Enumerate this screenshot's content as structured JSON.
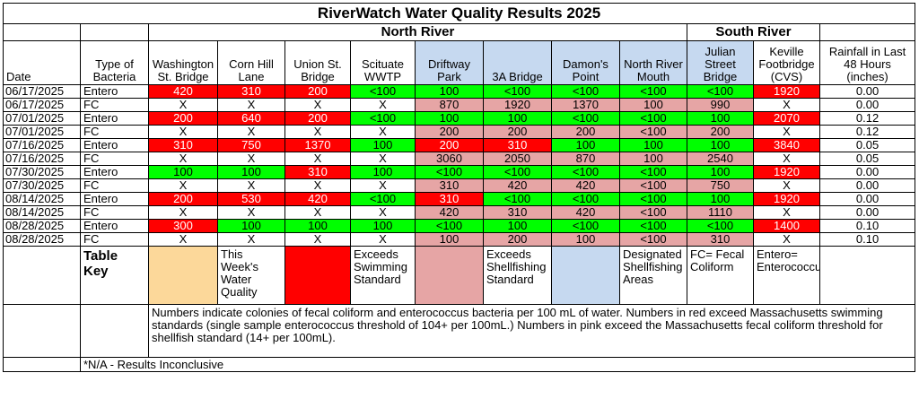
{
  "title": "RiverWatch Water Quality Results 2025",
  "regions": {
    "north": "North River",
    "south": "South River"
  },
  "columns": [
    "Date",
    "Type of Bacteria",
    "Washington St. Bridge",
    "Corn Hill Lane",
    "Union St. Bridge",
    "Scituate WWTP",
    "Driftway Park",
    "3A Bridge",
    "Damon's Point",
    "North River Mouth",
    "Julian Street Bridge",
    "Keville Footbridge (CVS)",
    "Rainfall in Last 48 Hours (inches)"
  ],
  "rows": [
    {
      "date": "06/17/2025",
      "type": "Entero",
      "values": [
        "420",
        "310",
        "200",
        "<100",
        "100",
        "<100",
        "<100",
        "<100",
        "<100",
        "1920"
      ],
      "colors": [
        "red",
        "red",
        "red",
        "green",
        "green",
        "green",
        "green",
        "green",
        "green",
        "red"
      ],
      "rain": "0.00"
    },
    {
      "date": "06/17/2025",
      "type": "FC",
      "values": [
        "X",
        "X",
        "X",
        "X",
        "870",
        "1920",
        "1370",
        "100",
        "990",
        "X"
      ],
      "colors": [
        "",
        "",
        "",
        "",
        "pink",
        "pink",
        "pink",
        "pink",
        "pink",
        ""
      ],
      "rain": "0.00"
    },
    {
      "date": "07/01/2025",
      "type": "Entero",
      "values": [
        "200",
        "640",
        "200",
        "<100",
        "100",
        "100",
        "<100",
        "<100",
        "100",
        "2070"
      ],
      "colors": [
        "red",
        "red",
        "red",
        "green",
        "green",
        "green",
        "green",
        "green",
        "green",
        "red"
      ],
      "rain": "0.12"
    },
    {
      "date": "07/01/2025",
      "type": "FC",
      "values": [
        "X",
        "X",
        "X",
        "X",
        "200",
        "200",
        "200",
        "<100",
        "200",
        "X"
      ],
      "colors": [
        "",
        "",
        "",
        "",
        "pink",
        "pink",
        "pink",
        "pink",
        "pink",
        ""
      ],
      "rain": "0.12"
    },
    {
      "date": "07/16/2025",
      "type": "Entero",
      "values": [
        "310",
        "750",
        "1370",
        "100",
        "200",
        "310",
        "100",
        "100",
        "100",
        "3840"
      ],
      "colors": [
        "red",
        "red",
        "red",
        "green",
        "red",
        "red",
        "green",
        "green",
        "green",
        "red"
      ],
      "rain": "0.05"
    },
    {
      "date": "07/16/2025",
      "type": "FC",
      "values": [
        "X",
        "X",
        "X",
        "X",
        "3060",
        "2050",
        "870",
        "100",
        "2540",
        "X"
      ],
      "colors": [
        "",
        "",
        "",
        "",
        "pink",
        "pink",
        "pink",
        "pink",
        "pink",
        ""
      ],
      "rain": "0.05"
    },
    {
      "date": "07/30/2025",
      "type": "Entero",
      "values": [
        "100",
        "100",
        "310",
        "100",
        "<100",
        "<100",
        "<100",
        "<100",
        "100",
        "1920"
      ],
      "colors": [
        "green",
        "green",
        "red",
        "green",
        "green",
        "green",
        "green",
        "green",
        "green",
        "red"
      ],
      "rain": "0.00"
    },
    {
      "date": "07/30/2025",
      "type": "FC",
      "values": [
        "X",
        "X",
        "X",
        "X",
        "310",
        "420",
        "420",
        "<100",
        "750",
        "X"
      ],
      "colors": [
        "",
        "",
        "",
        "",
        "pink",
        "pink",
        "pink",
        "pink",
        "pink",
        ""
      ],
      "rain": "0.00"
    },
    {
      "date": "08/14/2025",
      "type": "Entero",
      "values": [
        "200",
        "530",
        "420",
        "<100",
        "310",
        "<100",
        "<100",
        "<100",
        "100",
        "1920"
      ],
      "colors": [
        "red",
        "red",
        "red",
        "green",
        "red",
        "green",
        "green",
        "green",
        "green",
        "red"
      ],
      "rain": "0.00"
    },
    {
      "date": "08/14/2025",
      "type": "FC",
      "values": [
        "X",
        "X",
        "X",
        "X",
        "420",
        "310",
        "420",
        "<100",
        "1110",
        "X"
      ],
      "colors": [
        "",
        "",
        "",
        "",
        "pink",
        "pink",
        "pink",
        "pink",
        "pink",
        ""
      ],
      "rain": "0.00"
    },
    {
      "date": "08/28/2025",
      "type": "Entero",
      "values": [
        "300",
        "100",
        "100",
        "100",
        "<100",
        "100",
        "<100",
        "<100",
        "<100",
        "1400"
      ],
      "colors": [
        "red",
        "green",
        "green",
        "green",
        "green",
        "green",
        "green",
        "green",
        "green",
        "red"
      ],
      "rain": "0.10"
    },
    {
      "date": "08/28/2025",
      "type": "FC",
      "values": [
        "X",
        "X",
        "X",
        "X",
        "100",
        "200",
        "100",
        "<100",
        "310",
        "X"
      ],
      "colors": [
        "",
        "",
        "",
        "",
        "pink",
        "pink",
        "pink",
        "pink",
        "pink",
        ""
      ],
      "rain": "0.10"
    }
  ],
  "key": {
    "title": "Table Key",
    "items": [
      "This Week's Water Quality",
      "Exceeds Swimming Standard",
      "Exceeds Shellfishing Standard",
      "Designated Shellfishing Areas",
      "FC= Fecal Coliform",
      "Entero= Enterococcus"
    ]
  },
  "notes": "Numbers indicate colonies of fecal coliform and enterococcus bacteria per 100 mL of water. Numbers in red exceed Massachusetts swimming standards (single sample enterococcus threshold of 104+ per 100mL.) Numbers in pink exceed the Massachusetts fecal coliform threshold for shellfish standard (14+ per 100mL).",
  "footnote": "*N/A - Results Inconclusive",
  "colors": {
    "red": "#ff0000",
    "green": "#00ff00",
    "pink": "#e6a5a5",
    "blue": "#c6d9f0",
    "yellow": "#fcd89a"
  }
}
